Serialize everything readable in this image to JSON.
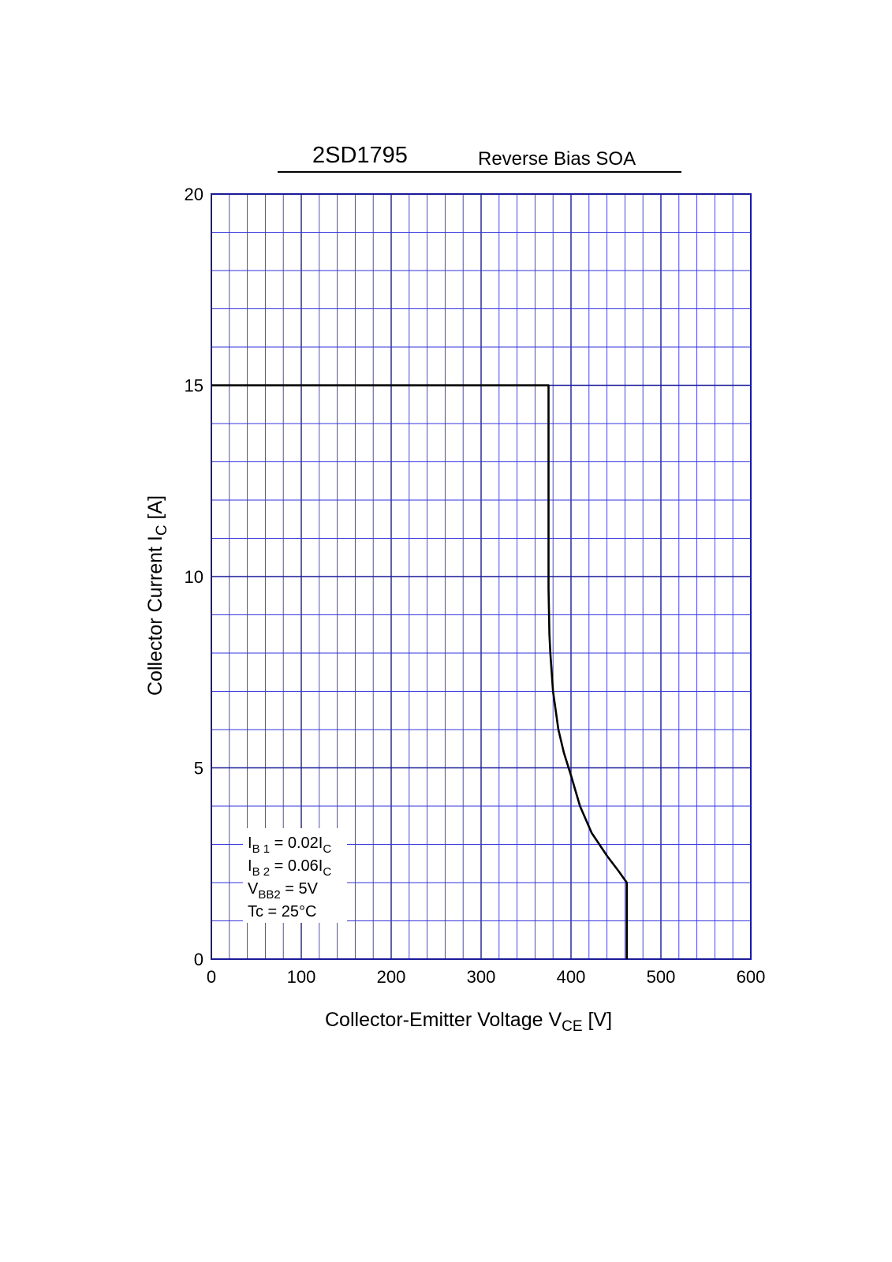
{
  "chart_data": {
    "type": "line",
    "title_part": "2SD1795",
    "subtitle": "Reverse Bias SOA",
    "xlabel": {
      "main": "Collector-Emitter Voltage  V",
      "sub": "CE",
      "unit": "  [V]"
    },
    "ylabel": {
      "main": "Collector Current  I",
      "sub": "C",
      "unit": "  [A]"
    },
    "xlim": [
      0,
      600
    ],
    "ylim": [
      0,
      20
    ],
    "x_ticks": [
      "0",
      "100",
      "200",
      "300",
      "400",
      "500",
      "600"
    ],
    "y_ticks": [
      "0",
      "5",
      "10",
      "15",
      "20"
    ],
    "grid": true,
    "series": [
      {
        "x": [
          0,
          375,
          375,
          375,
          375,
          376,
          377,
          380,
          386,
          392,
          400,
          410,
          423,
          440,
          453,
          462,
          462
        ],
        "y": [
          15,
          15,
          13,
          11.3,
          9.7,
          8.5,
          8,
          7,
          6,
          5.4,
          4.8,
          4,
          3.3,
          2.7,
          2.3,
          2,
          0
        ]
      }
    ],
    "annotations": [
      {
        "main": "I",
        "sub": "B 1",
        "rest": " = 0.02I",
        "sub2": "C"
      },
      {
        "main": "I",
        "sub": "B 2",
        "rest": " = 0.06I",
        "sub2": "C"
      },
      {
        "main": "V",
        "sub": "BB2",
        "rest": " = 5V",
        "sub2": ""
      },
      {
        "main": "Tc = 25°C",
        "sub": "",
        "rest": "",
        "sub2": ""
      }
    ],
    "colors": {
      "grid": "#3333dd",
      "frame": "#1a1a9a",
      "curve": "#000000"
    }
  }
}
